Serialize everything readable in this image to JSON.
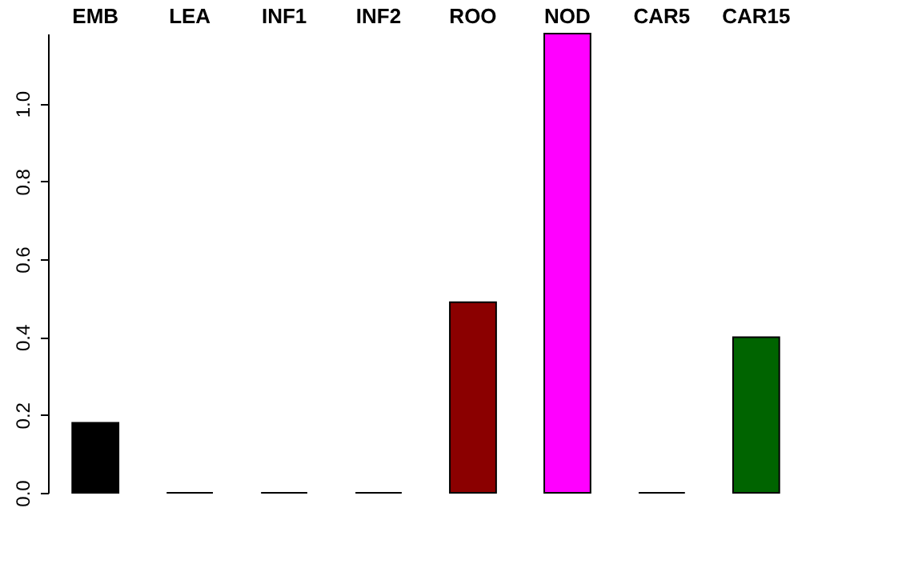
{
  "chart_data": {
    "type": "bar",
    "categories": [
      "EMB",
      "LEA",
      "INF1",
      "INF2",
      "ROO",
      "NOD",
      "CAR5",
      "CAR15"
    ],
    "values": [
      0.18,
      0,
      0,
      0,
      0.49,
      1.18,
      0,
      0.4
    ],
    "colors": [
      "#000000",
      "#000000",
      "#000000",
      "#000000",
      "#8b0000",
      "#ff00ff",
      "#000000",
      "#006400"
    ],
    "ylim": [
      0,
      1.18
    ],
    "yticks": [
      {
        "value": 0,
        "label": "0.0"
      },
      {
        "value": 0.2,
        "label": "0.2"
      },
      {
        "value": 0.4,
        "label": "0.4"
      },
      {
        "value": 0.6,
        "label": "0.6"
      },
      {
        "value": 0.8,
        "label": "0.8"
      },
      {
        "value": 1,
        "label": "1.0"
      }
    ],
    "grid": false,
    "legend": false
  }
}
